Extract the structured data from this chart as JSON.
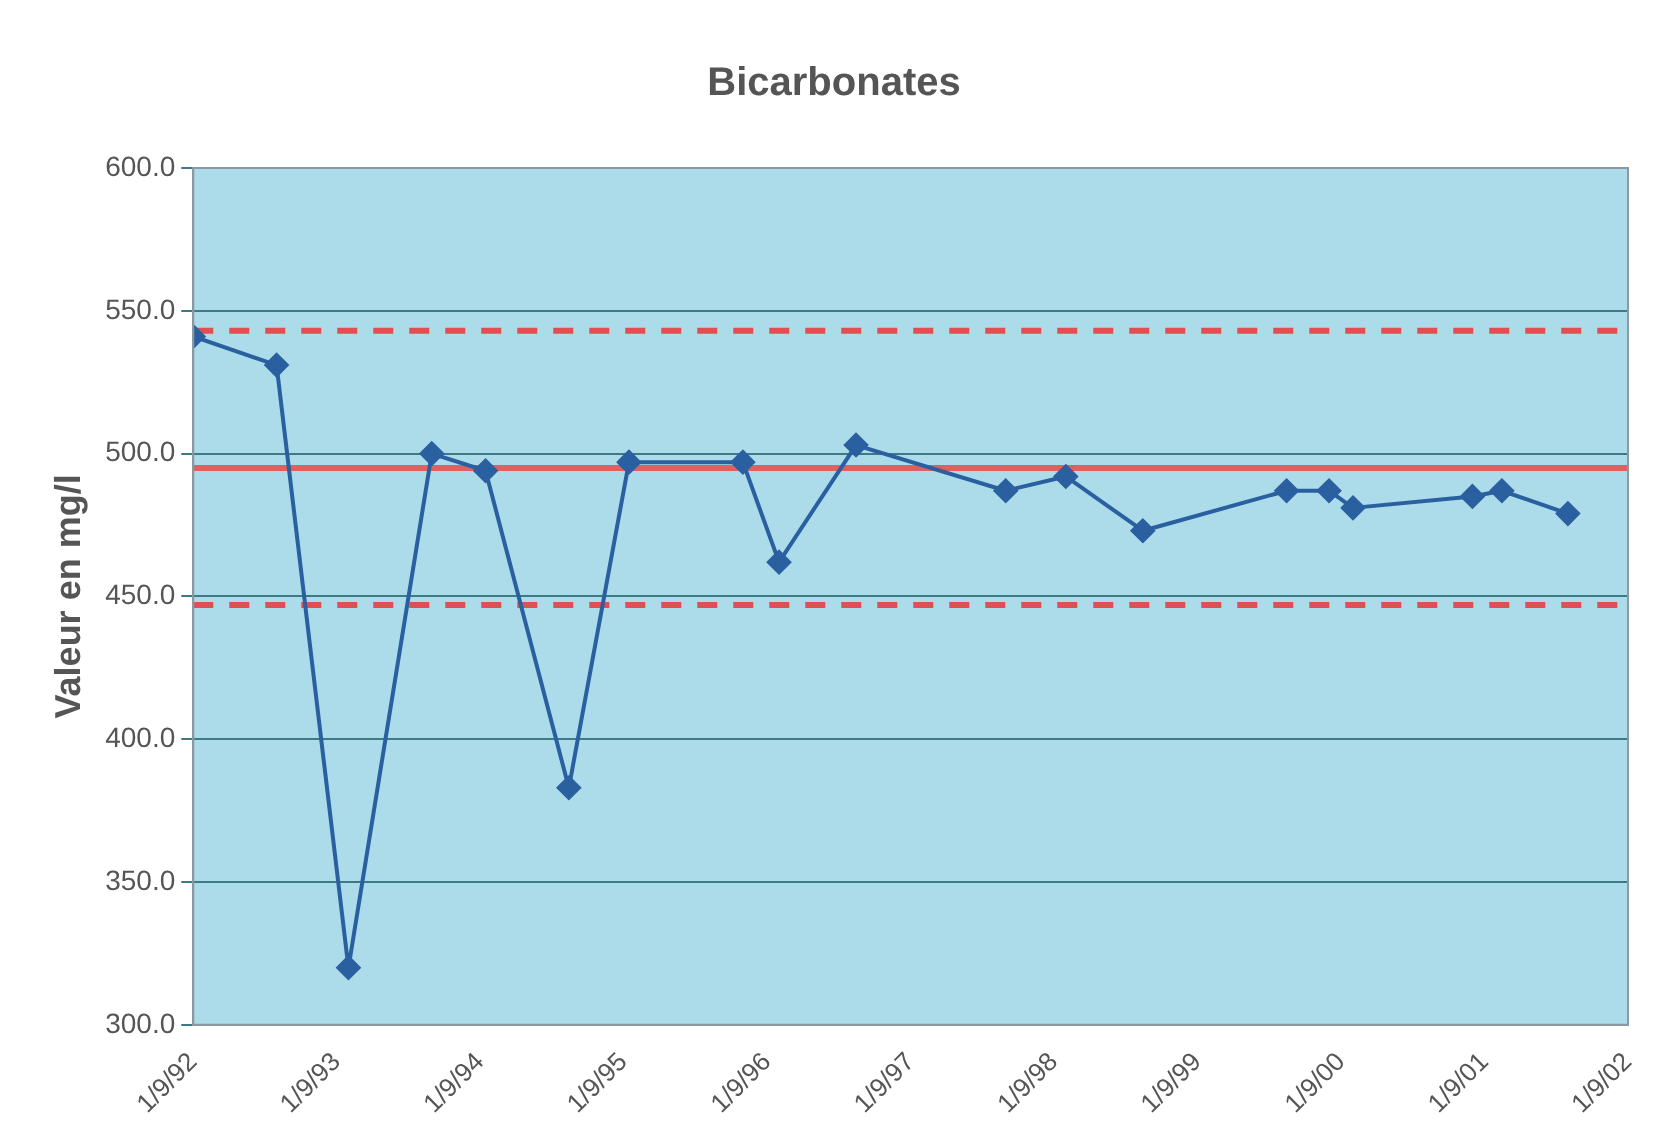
{
  "chart_data": {
    "type": "line",
    "title": "Bicarbonates",
    "ylabel": "Valeur en mg/l",
    "x": [
      "1992-09-01",
      "1993-04-01",
      "1993-10-01",
      "1994-05-01",
      "1994-09-15",
      "1995-04-15",
      "1995-09-15",
      "1996-07-01",
      "1996-10-01",
      "1997-04-15",
      "1998-05-01",
      "1998-10-01",
      "1999-04-15",
      "2000-04-15",
      "2000-08-01",
      "2000-10-01",
      "2001-08-01",
      "2001-10-15",
      "2002-04-01"
    ],
    "series": [
      {
        "color": "#2a5fa0",
        "values": [
          541,
          531,
          320,
          500,
          494,
          383,
          497,
          497,
          462,
          503,
          487,
          492,
          473,
          487,
          487,
          481,
          485,
          487,
          479
        ]
      }
    ],
    "xlim": [
      "1992-09-01",
      "2002-09-01"
    ],
    "xticks": [
      {
        "value": "1992-09-01",
        "label": "1/9/92"
      },
      {
        "value": "1993-09-01",
        "label": "1/9/93"
      },
      {
        "value": "1994-09-01",
        "label": "1/9/94"
      },
      {
        "value": "1995-09-01",
        "label": "1/9/95"
      },
      {
        "value": "1996-09-01",
        "label": "1/9/96"
      },
      {
        "value": "1997-09-01",
        "label": "1/9/97"
      },
      {
        "value": "1998-09-01",
        "label": "1/9/98"
      },
      {
        "value": "1999-09-01",
        "label": "1/9/99"
      },
      {
        "value": "2000-09-01",
        "label": "1/9/00"
      },
      {
        "value": "2001-09-01",
        "label": "1/9/01"
      },
      {
        "value": "2002-09-01",
        "label": "1/9/02"
      }
    ],
    "ylim": [
      300,
      600
    ],
    "yticks": [
      {
        "value": 300,
        "label": "300.0"
      },
      {
        "value": 350,
        "label": "350.0"
      },
      {
        "value": 400,
        "label": "400.0"
      },
      {
        "value": 450,
        "label": "450.0"
      },
      {
        "value": 500,
        "label": "500.0"
      },
      {
        "value": 550,
        "label": "550.0"
      },
      {
        "value": 600,
        "label": "600.0"
      }
    ],
    "ref_lines": [
      {
        "axis": "y",
        "value": 495,
        "label": null,
        "color": "#e06060",
        "line_style": "solid"
      },
      {
        "axis": "y",
        "value": 543,
        "label": null,
        "color": "#e05050",
        "line_style": "dashed"
      },
      {
        "axis": "y",
        "value": 447,
        "label": null,
        "color": "#e05050",
        "line_style": "dashed"
      }
    ],
    "grid": "y",
    "legend": false,
    "marker": "diamond",
    "line_style": "solid"
  }
}
